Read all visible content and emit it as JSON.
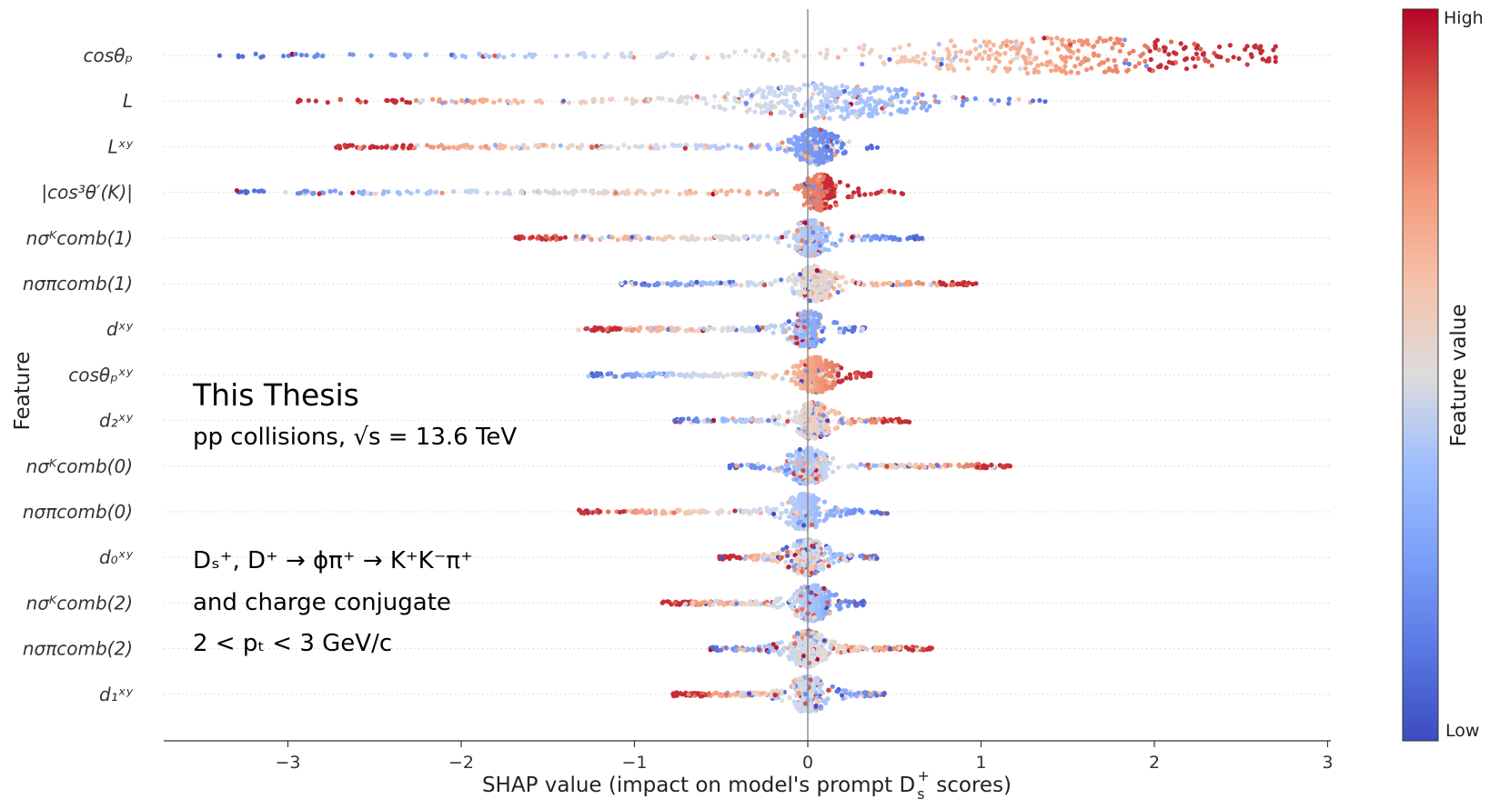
{
  "chart_data": {
    "type": "scatter",
    "subtype": "shap-beeswarm",
    "xlabel": "SHAP value (impact on model's prompt Dₛ⁺ scores)",
    "xlabel_main": "SHAP value (impact on model's prompt D",
    "xlabel_sup": "+",
    "xlabel_sub": "s",
    "xlabel_tail": " scores)",
    "ylabel": "Feature",
    "xlim": [
      -3.7,
      3.0
    ],
    "xticks": [
      -3,
      -2,
      -1,
      0,
      1,
      2,
      3
    ],
    "xtick_labels": [
      "−3",
      "−2",
      "−1",
      "0",
      "1",
      "2",
      "3"
    ],
    "colorbar": {
      "label": "Feature value",
      "high": "High",
      "low": "Low"
    },
    "colormap": [
      "#3b4cc0",
      "#6788ee",
      "#9abbff",
      "#c9d7f0",
      "#dddcdc",
      "#f2cbb7",
      "#f7a889",
      "#e26952",
      "#b40426"
    ],
    "annotations": {
      "title": "This Thesis",
      "system": "pp collisions, √s = 13.6 TeV",
      "decay": "Dₛ⁺, D⁺ → ϕπ⁺ → K⁺K⁻π⁺",
      "conj": "and charge conjugate",
      "pt": "2 < pₜ < 3 GeV/c"
    },
    "features": [
      {
        "label": "cosθₚ",
        "min": -3.4,
        "max": 2.7,
        "core": [
          0.0,
          2.3
        ],
        "peak": 1.45,
        "trend": "pos",
        "mix": 0.15
      },
      {
        "label": "L",
        "min": -2.95,
        "max": 1.45,
        "core": [
          -0.2,
          0.85
        ],
        "peak": 0.12,
        "trend": "neg",
        "mix": 0.2
      },
      {
        "label": "Lˣʸ",
        "min": -2.75,
        "max": 0.43,
        "core": [
          -0.05,
          0.2
        ],
        "peak": 0.05,
        "trend": "neg",
        "mix": 0.25
      },
      {
        "label": "|cos³θ′(K)|",
        "min": -3.3,
        "max": 0.55,
        "core": [
          0.0,
          0.15
        ],
        "peak": 0.07,
        "trend": "pos",
        "mix": 0.2
      },
      {
        "label": "nσᴷcomb(1)",
        "min": -1.7,
        "max": 0.68,
        "core": [
          -0.05,
          0.1
        ],
        "peak": 0.02,
        "trend": "neg",
        "mix": 0.25
      },
      {
        "label": "nσπcomb(1)",
        "min": -1.08,
        "max": 1.0,
        "core": [
          -0.05,
          0.15
        ],
        "peak": 0.05,
        "trend": "pos",
        "mix": 0.3
      },
      {
        "label": "dˣʸ",
        "min": -1.33,
        "max": 0.33,
        "core": [
          -0.05,
          0.1
        ],
        "peak": 0.0,
        "trend": "neg",
        "mix": 0.3
      },
      {
        "label": "cosθₚˣʸ",
        "min": -1.27,
        "max": 0.37,
        "core": [
          -0.05,
          0.15
        ],
        "peak": 0.05,
        "trend": "pos",
        "mix": 0.2
      },
      {
        "label": "d₂ˣʸ",
        "min": -0.78,
        "max": 0.6,
        "core": [
          -0.05,
          0.1
        ],
        "peak": 0.03,
        "trend": "pos",
        "mix": 0.4
      },
      {
        "label": "nσᴷcomb(0)",
        "min": -0.47,
        "max": 1.17,
        "core": [
          -0.1,
          0.1
        ],
        "peak": 0.0,
        "trend": "pos",
        "mix": 0.3
      },
      {
        "label": "nσπcomb(0)",
        "min": -1.33,
        "max": 0.47,
        "core": [
          -0.1,
          0.05
        ],
        "peak": -0.02,
        "trend": "neg",
        "mix": 0.2
      },
      {
        "label": "d₀ˣʸ",
        "min": -0.52,
        "max": 0.4,
        "core": [
          -0.05,
          0.1
        ],
        "peak": 0.0,
        "trend": "neg",
        "mix": 0.5
      },
      {
        "label": "nσᴷcomb(2)",
        "min": -0.85,
        "max": 0.33,
        "core": [
          -0.05,
          0.1
        ],
        "peak": 0.03,
        "trend": "neg",
        "mix": 0.3
      },
      {
        "label": "nσπcomb(2)",
        "min": -0.57,
        "max": 0.72,
        "core": [
          -0.1,
          0.1
        ],
        "peak": 0.0,
        "trend": "pos",
        "mix": 0.3
      },
      {
        "label": "d₁ˣʸ",
        "min": -0.78,
        "max": 0.45,
        "core": [
          -0.05,
          0.1
        ],
        "peak": 0.0,
        "trend": "neg",
        "mix": 0.5
      }
    ]
  }
}
